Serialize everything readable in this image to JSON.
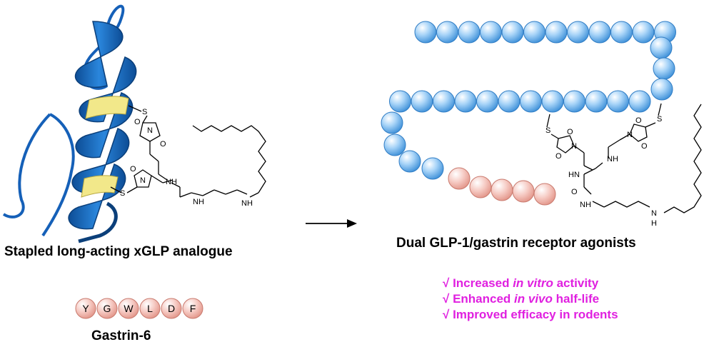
{
  "left": {
    "caption": "Stapled long-acting xGLP analogue",
    "gastrin_caption": "Gastrin-6",
    "gastrin_residues": [
      "Y",
      "G",
      "W",
      "L",
      "D",
      "F"
    ]
  },
  "right": {
    "caption": "Dual GLP-1/gastrin receptor agonists",
    "benefits": [
      {
        "check": "√",
        "pre": "Increased ",
        "em": "in vitro",
        "post": " activity"
      },
      {
        "check": "√",
        "pre": "Enhanced ",
        "em": "in vivo",
        "post": " half-life"
      },
      {
        "check": "√",
        "pre": "Improved efficacy in rodents",
        "em": "",
        "post": ""
      }
    ]
  },
  "chem_labels": {
    "sulfur": "S",
    "nitrogen": "N",
    "oxygen": "O",
    "amide_nh": "NH",
    "hn": "HN",
    "h": "H"
  },
  "colors": {
    "helix_blue": "#1f6fc4",
    "helix_dark": "#0b3f7a",
    "staple_yellow": "#f2e88a",
    "bead_blue": "#6fb6f2",
    "bead_pink": "#f2b7ae",
    "benefit_magenta": "#e020e0"
  }
}
